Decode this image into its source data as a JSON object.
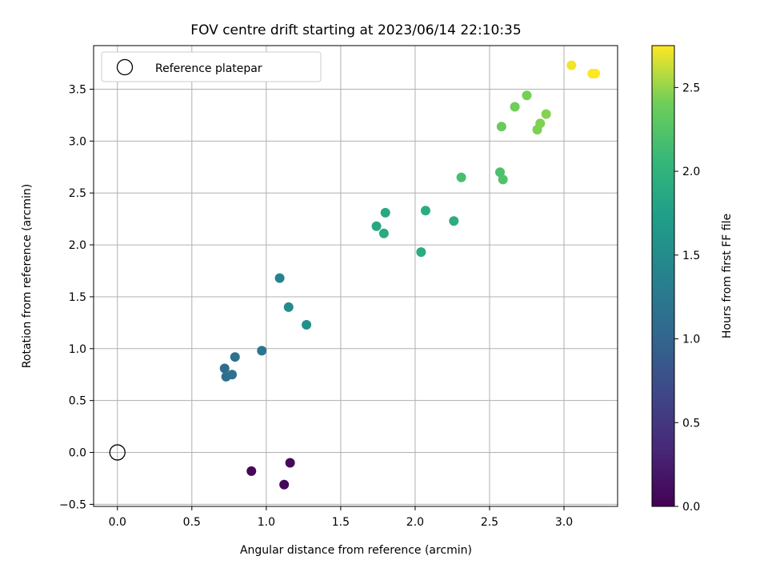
{
  "chart_data": {
    "type": "scatter",
    "title": "FOV centre drift starting at 2023/06/14 22:10:35",
    "xlabel": "Angular distance from reference (arcmin)",
    "ylabel": "Rotation from reference (arcmin)",
    "xlim": [
      -0.16,
      3.36
    ],
    "ylim": [
      -0.52,
      3.92
    ],
    "xticks": [
      0.0,
      0.5,
      1.0,
      1.5,
      2.0,
      2.5,
      3.0
    ],
    "xtick_labels": [
      "0.0",
      "0.5",
      "1.0",
      "1.5",
      "2.0",
      "2.5",
      "3.0"
    ],
    "yticks": [
      -0.5,
      0.0,
      0.5,
      1.0,
      1.5,
      2.0,
      2.5,
      3.0,
      3.5
    ],
    "ytick_labels": [
      "−0.5",
      "0.0",
      "0.5",
      "1.0",
      "1.5",
      "2.0",
      "2.5",
      "3.0",
      "3.5"
    ],
    "grid": true,
    "colormap": "viridis",
    "colorbar": {
      "label": "Hours from first FF file",
      "range": [
        0.0,
        2.75
      ],
      "ticks": [
        0.0,
        0.5,
        1.0,
        1.5,
        2.0,
        2.5
      ],
      "tick_labels": [
        "0.0",
        "0.5",
        "1.0",
        "1.5",
        "2.0",
        "2.5"
      ]
    },
    "reference": {
      "x": 0.0,
      "y": 0.0,
      "label": "Reference platepar"
    },
    "legend": {
      "position": "top-left",
      "entries": [
        "Reference platepar"
      ]
    },
    "points": [
      {
        "x": 0.9,
        "y": -0.18,
        "c": 0.05
      },
      {
        "x": 1.12,
        "y": -0.31,
        "c": 0.06
      },
      {
        "x": 1.16,
        "y": -0.1,
        "c": 0.08
      },
      {
        "x": 0.72,
        "y": 0.81,
        "c": 1.1
      },
      {
        "x": 0.73,
        "y": 0.73,
        "c": 1.12
      },
      {
        "x": 0.77,
        "y": 0.75,
        "c": 1.14
      },
      {
        "x": 0.79,
        "y": 0.92,
        "c": 1.16
      },
      {
        "x": 0.97,
        "y": 0.98,
        "c": 1.2
      },
      {
        "x": 1.09,
        "y": 1.68,
        "c": 1.38
      },
      {
        "x": 1.15,
        "y": 1.4,
        "c": 1.48
      },
      {
        "x": 1.27,
        "y": 1.23,
        "c": 1.55
      },
      {
        "x": 1.74,
        "y": 2.18,
        "c": 1.85
      },
      {
        "x": 1.79,
        "y": 2.11,
        "c": 1.88
      },
      {
        "x": 1.8,
        "y": 2.31,
        "c": 1.86
      },
      {
        "x": 2.04,
        "y": 1.93,
        "c": 1.9
      },
      {
        "x": 2.07,
        "y": 2.33,
        "c": 1.92
      },
      {
        "x": 2.26,
        "y": 2.23,
        "c": 1.93
      },
      {
        "x": 2.31,
        "y": 2.65,
        "c": 2.18
      },
      {
        "x": 2.57,
        "y": 2.7,
        "c": 2.2
      },
      {
        "x": 2.59,
        "y": 2.63,
        "c": 2.22
      },
      {
        "x": 2.58,
        "y": 3.14,
        "c": 2.36
      },
      {
        "x": 2.67,
        "y": 3.33,
        "c": 2.4
      },
      {
        "x": 2.75,
        "y": 3.44,
        "c": 2.42
      },
      {
        "x": 2.82,
        "y": 3.11,
        "c": 2.44
      },
      {
        "x": 2.84,
        "y": 3.17,
        "c": 2.45
      },
      {
        "x": 2.88,
        "y": 3.26,
        "c": 2.46
      },
      {
        "x": 3.05,
        "y": 3.73,
        "c": 2.72
      },
      {
        "x": 3.19,
        "y": 3.65,
        "c": 2.74
      },
      {
        "x": 3.21,
        "y": 3.65,
        "c": 2.75
      }
    ]
  }
}
